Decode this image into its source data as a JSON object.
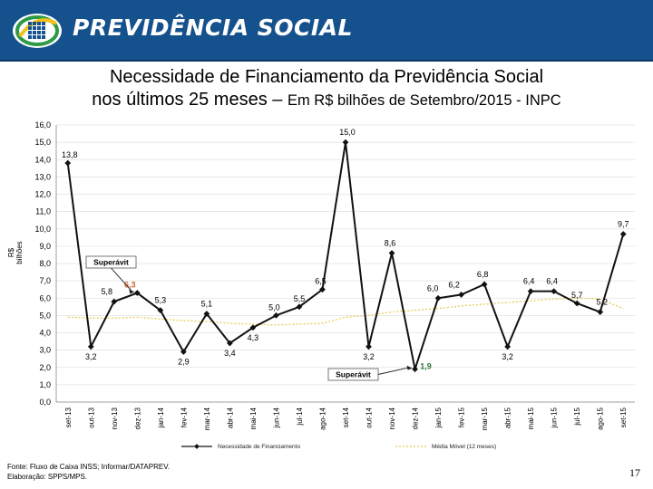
{
  "header": {
    "brand": "PREVIDÊNCIA SOCIAL",
    "brand_color": "#15518d"
  },
  "title_line1": "Necessidade de Financiamento da Previdência Social",
  "title_line2_main": "nos últimos 25 meses – ",
  "title_line2_sub": "Em R$ bilhões de Setembro/2015 - INPC",
  "footer": {
    "source": "Fonte: Fluxo de Caixa INSS; Informar/DATAPREV.",
    "elaboration": "Elaboração: SPPS/MPS."
  },
  "page_number": "17",
  "chart_data": {
    "type": "line",
    "ylabel": "R$ bilhões",
    "ylim": [
      0,
      16
    ],
    "yticks": [
      "0,0",
      "1,0",
      "2,0",
      "3,0",
      "4,0",
      "5,0",
      "6,0",
      "7,0",
      "8,0",
      "9,0",
      "10,0",
      "11,0",
      "12,0",
      "13,0",
      "14,0",
      "15,0",
      "16,0"
    ],
    "categories": [
      "set-13",
      "out-13",
      "nov-13",
      "dez-13",
      "jan-14",
      "fev-14",
      "mar-14",
      "abr-14",
      "mai-14",
      "jun-14",
      "jul-14",
      "ago-14",
      "set-14",
      "out-14",
      "nov-14",
      "dez-14",
      "jan-15",
      "fev-15",
      "mar-15",
      "abr-15",
      "mai-15",
      "jun-15",
      "jul-15",
      "ago-15",
      "set-15"
    ],
    "grid": true,
    "legend_position": "bottom",
    "series": [
      {
        "name": "Necessidade de Financiamento",
        "color": "#111111",
        "values": [
          13.8,
          3.2,
          5.8,
          6.3,
          5.3,
          2.9,
          5.1,
          3.4,
          4.3,
          5.0,
          5.5,
          6.5,
          15.0,
          3.2,
          8.6,
          1.9,
          6.0,
          6.2,
          6.8,
          3.2,
          6.4,
          6.4,
          5.7,
          5.2,
          9.7
        ],
        "labels": [
          "13,8",
          "3,2",
          "5,8",
          "6,3",
          "5,3",
          "2,9",
          "5,1",
          "3,4",
          "4,3",
          "5,0",
          "5,5",
          "6,5",
          "15,0",
          "3,2",
          "8,6",
          "1,9",
          "6,0",
          "6,2",
          "6,8",
          "3,2",
          "6,4",
          "6,4",
          "5,7",
          "5,2",
          "9,7"
        ]
      },
      {
        "name": "Média Móvel (12 meses)",
        "color": "#e8c84a",
        "values": [
          4.9,
          4.85,
          4.85,
          4.9,
          4.8,
          4.7,
          4.65,
          4.55,
          4.5,
          4.45,
          4.5,
          4.55,
          4.9,
          5.0,
          5.2,
          5.3,
          5.4,
          5.55,
          5.65,
          5.75,
          5.85,
          5.95,
          6.0,
          5.95,
          5.4
        ]
      }
    ],
    "annotations": [
      {
        "text": "Superávit",
        "target_index": 3,
        "label_color": "#d4622f"
      },
      {
        "text": "Superávit",
        "target_index": 15,
        "label_color": "#2b7a3a"
      }
    ]
  }
}
